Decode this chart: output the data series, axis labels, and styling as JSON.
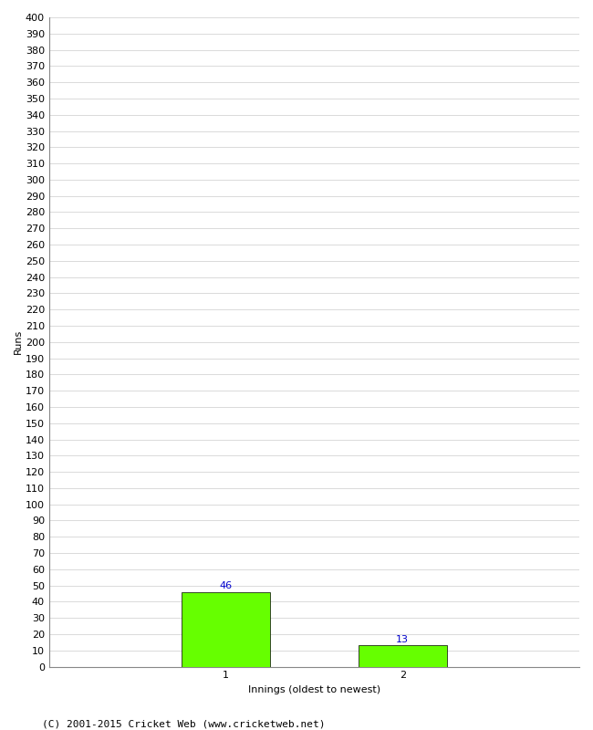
{
  "xlabel": "Innings (oldest to newest)",
  "ylabel": "Runs",
  "categories": [
    "1",
    "2"
  ],
  "values": [
    46,
    13
  ],
  "bar_color": "#66ff00",
  "bar_edge_color": "#000000",
  "annotation_color": "#0000cc",
  "annotation_fontsize": 8,
  "ylabel_fontsize": 8,
  "xlabel_fontsize": 8,
  "tick_fontsize": 8,
  "footer_text": "(C) 2001-2015 Cricket Web (www.cricketweb.net)",
  "footer_fontsize": 8,
  "ylim": [
    0,
    400
  ],
  "ytick_step": 10,
  "background_color": "#ffffff",
  "grid_color": "#cccccc",
  "bar_width": 0.5,
  "xlim": [
    0,
    3
  ]
}
